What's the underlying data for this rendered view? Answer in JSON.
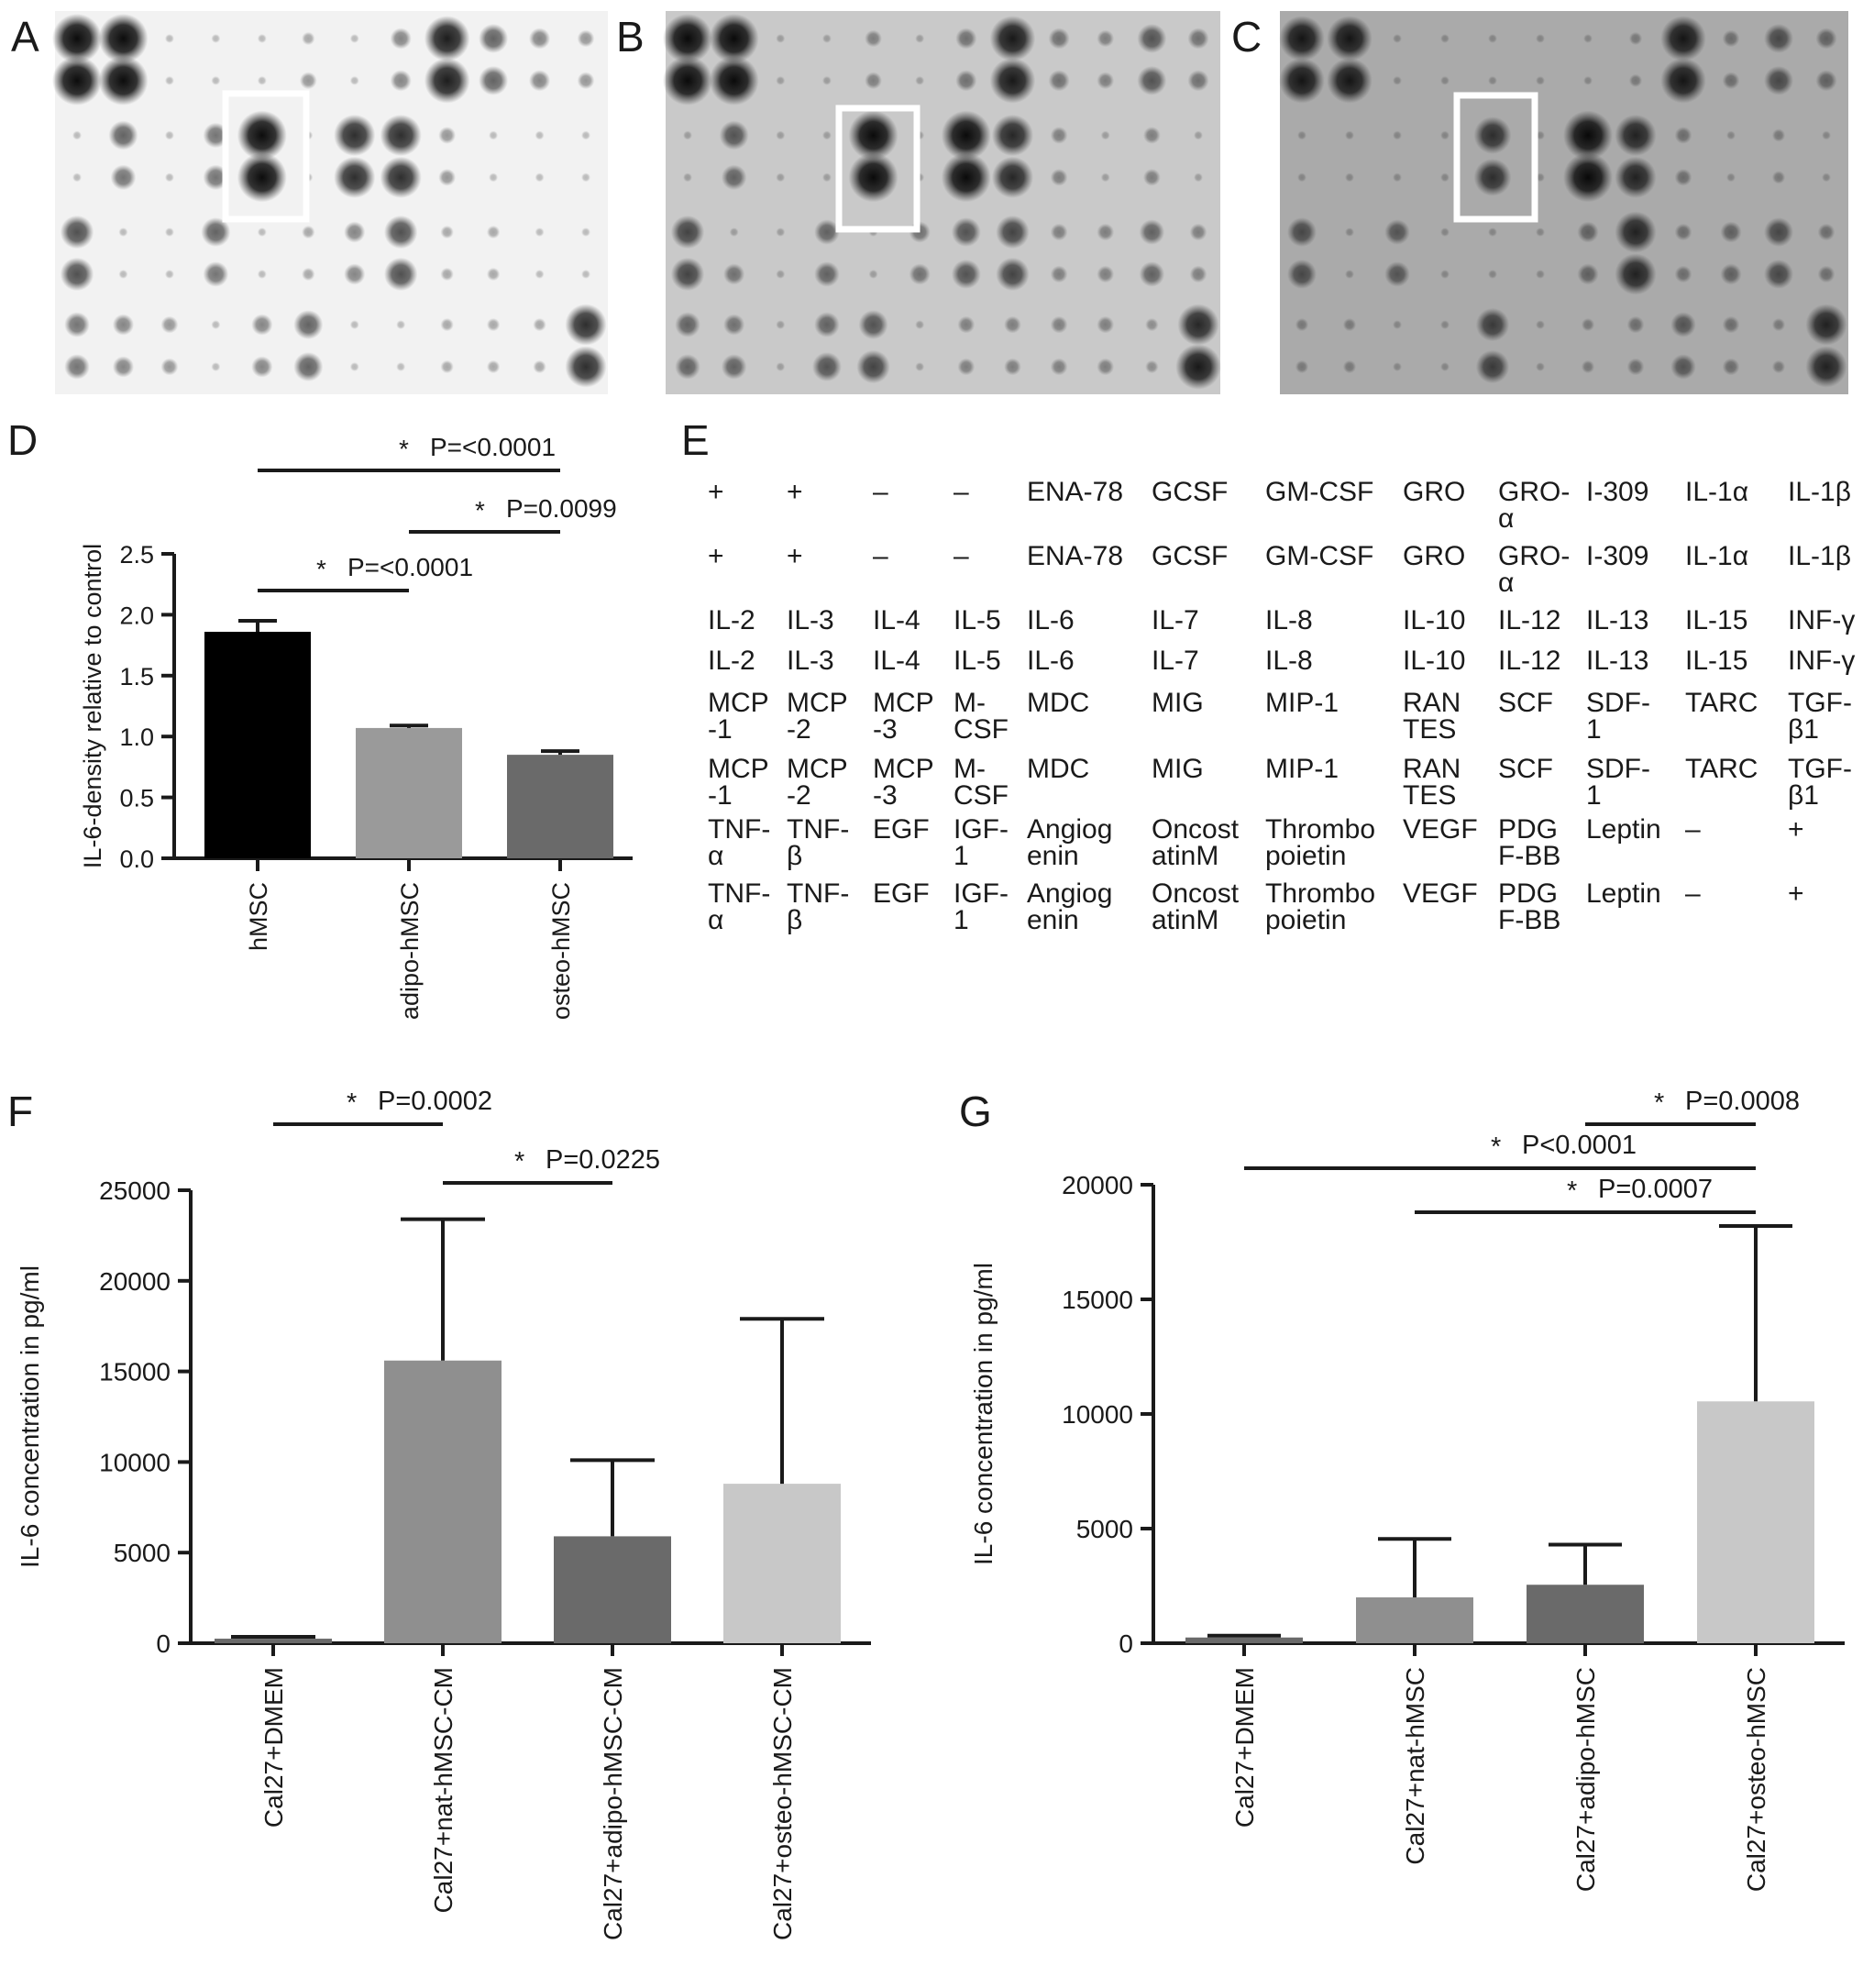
{
  "panels": {
    "A": "A",
    "B": "B",
    "C": "C",
    "D": "D",
    "E": "E",
    "F": "F",
    "G": "G"
  },
  "blots": [
    {
      "panel": "A",
      "background": "#f2f2f2",
      "spot_shade": 0.12
    },
    {
      "panel": "B",
      "background": "#c9c9c9",
      "spot_shade": 0.1
    },
    {
      "panel": "C",
      "background": "#aaaaaa",
      "spot_shade": 0.1
    }
  ],
  "array_layout": {
    "rows": [
      [
        "+",
        "+",
        "–",
        "–",
        "ENA-78",
        "GCSF",
        "GM-CSF",
        "GRO",
        "GRO-\nα",
        "I-309",
        "IL-1α",
        "IL-1β"
      ],
      [
        "+",
        "+",
        "–",
        "–",
        "ENA-78",
        "GCSF",
        "GM-CSF",
        "GRO",
        "GRO-\nα",
        "I-309",
        "IL-1α",
        "IL-1β"
      ],
      [
        "IL-2",
        "IL-3",
        "IL-4",
        "IL-5",
        "IL-6",
        "IL-7",
        "IL-8",
        "IL-10",
        "IL-12",
        "IL-13",
        "IL-15",
        "INF-γ"
      ],
      [
        "IL-2",
        "IL-3",
        "IL-4",
        "IL-5",
        "IL-6",
        "IL-7",
        "IL-8",
        "IL-10",
        "IL-12",
        "IL-13",
        "IL-15",
        "INF-γ"
      ],
      [
        "MCP\n-1",
        "MCP\n-2",
        "MCP\n-3",
        "M-\nCSF",
        "MDC",
        "MIG",
        "MIP-1",
        "RAN\nTES",
        "SCF",
        "SDF-\n1",
        "TARC",
        "TGF-\nβ1"
      ],
      [
        "MCP\n-1",
        "MCP\n-2",
        "MCP\n-3",
        "M-\nCSF",
        "MDC",
        "MIG",
        "MIP-1",
        "RAN\nTES",
        "SCF",
        "SDF-\n1",
        "TARC",
        "TGF-\nβ1"
      ],
      [
        "TNF-\nα",
        "TNF-\nβ",
        "EGF",
        "IGF-\n1",
        "Angiog\nenin",
        "Oncost\natinM",
        "Thrombo\npoietin",
        "VEGF",
        "PDG\nF-BB",
        "Leptin",
        "–",
        "+"
      ],
      [
        "TNF-\nα",
        "TNF-\nβ",
        "EGF",
        "IGF-\n1",
        "Angiog\nenin",
        "Oncost\natinM",
        "Thrombo\npoietin",
        "VEGF",
        "PDG\nF-BB",
        "Leptin",
        "–",
        "+"
      ]
    ]
  },
  "chart_data": [
    {
      "panel": "D",
      "type": "bar",
      "categories": [
        "hMSC",
        "adipo-hMSC",
        "osteo-hMSC"
      ],
      "values": [
        1.86,
        1.07,
        0.85
      ],
      "errors": [
        0.09,
        0.02,
        0.03
      ],
      "colors": [
        "#000000",
        "#9a9a9a",
        "#6a6a6a"
      ],
      "ylabel": "IL-6-density relative to control",
      "ylim": [
        0,
        2.5
      ],
      "yticks": [
        "0.0",
        "0.5",
        "1.0",
        "1.5",
        "2.0",
        "2.5"
      ],
      "significance": [
        {
          "from": 0,
          "to": 1,
          "label": "P=<0.0001"
        },
        {
          "from": 1,
          "to": 2,
          "label": "P=0.0099"
        },
        {
          "from": 0,
          "to": 2,
          "label": "P=<0.0001"
        }
      ],
      "star": "*"
    },
    {
      "panel": "F",
      "type": "bar",
      "categories": [
        "Cal27+DMEM",
        "Cal27+nat-hMSC-CM",
        "Cal27+adipo-hMSC-CM",
        "Cal27+osteo-hMSC-CM"
      ],
      "values": [
        250,
        15600,
        5900,
        8800
      ],
      "errors": [
        0,
        7800,
        4200,
        9100
      ],
      "colors": [
        "#6a6a6a",
        "#8f8f8f",
        "#6a6a6a",
        "#c8c8c8"
      ],
      "ylabel": "IL-6 concentration in pg/ml",
      "ylim": [
        0,
        25000
      ],
      "yticks": [
        "0",
        "5000",
        "10000",
        "15000",
        "20000",
        "25000"
      ],
      "significance": [
        {
          "from": 0,
          "to": 1,
          "label": "P=0.0002"
        },
        {
          "from": 1,
          "to": 2,
          "label": "P=0.0225"
        }
      ],
      "star": "*"
    },
    {
      "panel": "G",
      "type": "bar",
      "categories": [
        "Cal27+DMEM",
        "Cal27+nat-hMSC",
        "Cal27+adipo-hMSC",
        "Cal27+osteo-hMSC"
      ],
      "values": [
        250,
        2000,
        2550,
        10550
      ],
      "errors": [
        0,
        2550,
        1750,
        7650
      ],
      "colors": [
        "#6a6a6a",
        "#8f8f8f",
        "#6a6a6a",
        "#c8c8c8"
      ],
      "ylabel": "IL-6 concentration in pg/ml",
      "ylim": [
        0,
        20000
      ],
      "yticks": [
        "0",
        "5000",
        "10000",
        "15000",
        "20000"
      ],
      "significance": [
        {
          "from": 2,
          "to": 3,
          "label": "P=0.0008"
        },
        {
          "from": 0,
          "to": 3,
          "label": "P<0.0001"
        },
        {
          "from": 1,
          "to": 3,
          "label": "P=0.0007"
        }
      ],
      "star": "*"
    }
  ]
}
